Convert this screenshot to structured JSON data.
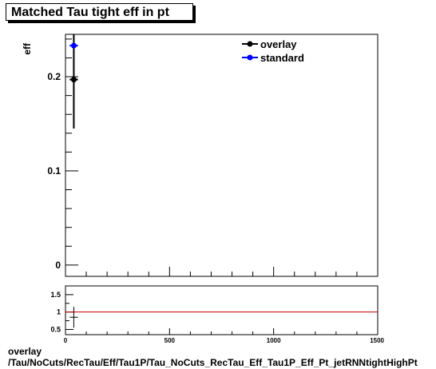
{
  "title": "Matched Tau tight eff in pt",
  "footer": {
    "line1": "overlay",
    "line2": "/Tau/NoCuts/RecTau/Eff/Tau1P/Tau_NoCuts_RecTau_Eff_Tau1P_Eff_Pt_jetRNNtightHighPt"
  },
  "chart_data": [
    {
      "type": "scatter",
      "title": "Matched Tau tight eff in pt",
      "ylabel": "eff",
      "xlabel": "",
      "xlim": [
        0,
        1500
      ],
      "ylim": [
        -0.012,
        0.245
      ],
      "y_ticks": [
        0,
        0.1,
        0.2
      ],
      "y_tick_labels": [
        "0",
        "0.1",
        "0.2"
      ],
      "x_ticks": [
        0,
        500,
        1000,
        1500
      ],
      "x_tick_labels": [
        "0",
        "500",
        "1000",
        "1500"
      ],
      "legend_position": "top-right",
      "series": [
        {
          "name": "overlay",
          "color": "#000000",
          "points": [
            {
              "x": 40,
              "xerr": 20,
              "y": 0.197,
              "yerr_low": 0.052,
              "yerr_high": 0.05
            }
          ]
        },
        {
          "name": "standard",
          "color": "#0000ff",
          "points": [
            {
              "x": 40,
              "xerr": 20,
              "y": 0.233,
              "yerr_low": 0.0,
              "yerr_high": 0.0
            }
          ]
        }
      ]
    },
    {
      "type": "scatter",
      "xlim": [
        0,
        1500
      ],
      "ylim": [
        0.35,
        1.75
      ],
      "y_ticks": [
        0.5,
        1,
        1.5
      ],
      "y_tick_labels": [
        "0.5",
        "1",
        "1.5"
      ],
      "x_ticks": [
        0,
        500,
        1000,
        1500
      ],
      "x_tick_labels": [
        "0",
        "500",
        "1000",
        "1500"
      ],
      "reference_line": {
        "y": 1,
        "color": "#cc0000"
      },
      "series": [
        {
          "color": "#000000",
          "points": [
            {
              "x": 40,
              "xerr": 20,
              "y": 0.85,
              "yerr_low": 0.3,
              "yerr_high": 0.3
            }
          ]
        }
      ]
    }
  ]
}
